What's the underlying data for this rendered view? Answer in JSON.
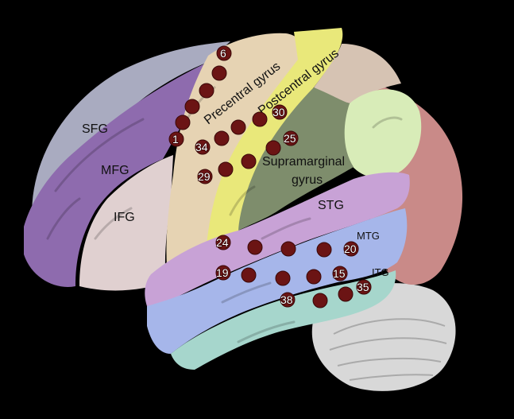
{
  "regions": {
    "sfg": "SFG",
    "mfg": "MFG",
    "ifg": "IFG",
    "precentral": "Precentral gyrus",
    "postcentral": "Postcentral gyrus",
    "supramarginal_line1": "Supramarginal",
    "supramarginal_line2": "gyrus",
    "stg": "STG",
    "mtg": "MTG",
    "itg": "ITG"
  },
  "electrode_labels": {
    "e6": "6",
    "e1": "1",
    "e34": "34",
    "e29": "29",
    "e30": "30",
    "e25": "25",
    "e24": "24",
    "e19": "19",
    "e20": "20",
    "e15": "15",
    "e35": "35",
    "e38": "38"
  },
  "colors": {
    "background": "#000000",
    "sfg": "#a9abc0",
    "mfg": "#8e6bae",
    "ifg": "#e0cfcf",
    "precentral": "#e6d3b3",
    "postcentral": "#e9e87a",
    "supramarginal": "#7e8d6c",
    "parietal": "#d8ecb8",
    "occipital": "#c88a88",
    "stg": "#c8a2d6",
    "mtg": "#a6b6ea",
    "itg": "#a6d6cc",
    "cerebellum": "#d9d9d9",
    "electrode": "#6b1414"
  }
}
